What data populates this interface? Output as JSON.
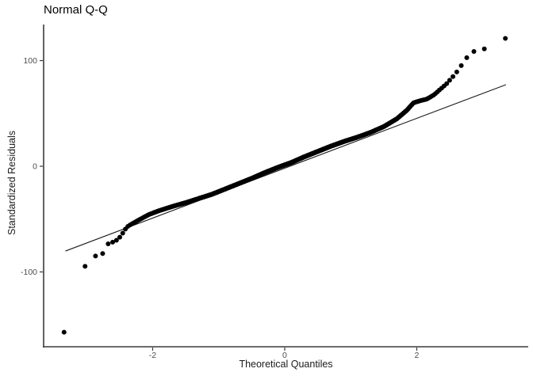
{
  "chart_data": {
    "type": "scatter",
    "subtype": "normal-qq-plot",
    "title": "Normal Q-Q",
    "xlabel": "Theoretical Quantiles",
    "ylabel": "Standardized Residuals",
    "x_tick_values": [
      -2,
      0,
      2
    ],
    "x_tick_labels": [
      "-2",
      "0",
      "2"
    ],
    "y_tick_values": [
      -100,
      0,
      100
    ],
    "y_tick_labels": [
      "-100",
      "0",
      "100"
    ],
    "xlim": [
      -3.651,
      3.688
    ],
    "ylim": [
      -170.8,
      134.1
    ],
    "grid": false,
    "legend": false,
    "n_points": 1200,
    "point_radius_px": 3,
    "qq_curve_points": [
      [
        -3.34,
        -157
      ],
      [
        -3.02,
        -94
      ],
      [
        -2.87,
        -85
      ],
      [
        -2.77,
        -84
      ],
      [
        -2.67,
        -73
      ],
      [
        -2.59,
        -71.5
      ],
      [
        -2.52,
        -69
      ],
      [
        -2.46,
        -64
      ],
      [
        -2.42,
        -60
      ],
      [
        -2.37,
        -56.5
      ],
      [
        -2.3,
        -54
      ],
      [
        -2.2,
        -50.5
      ],
      [
        -2.05,
        -45.5
      ],
      [
        -1.9,
        -42
      ],
      [
        -1.7,
        -38
      ],
      [
        -1.5,
        -34.5
      ],
      [
        -1.3,
        -30.5
      ],
      [
        -1.1,
        -26.5
      ],
      [
        -0.9,
        -21.5
      ],
      [
        -0.7,
        -16.5
      ],
      [
        -0.5,
        -11.5
      ],
      [
        -0.3,
        -6
      ],
      [
        -0.1,
        -1
      ],
      [
        0.1,
        3.5
      ],
      [
        0.3,
        9
      ],
      [
        0.5,
        14
      ],
      [
        0.7,
        19
      ],
      [
        0.9,
        23.5
      ],
      [
        1.1,
        27.5
      ],
      [
        1.3,
        32
      ],
      [
        1.5,
        37.5
      ],
      [
        1.7,
        45
      ],
      [
        1.85,
        53
      ],
      [
        1.95,
        60
      ],
      [
        2.05,
        62
      ],
      [
        2.15,
        63.5
      ],
      [
        2.26,
        67.5
      ],
      [
        2.35,
        72.5
      ],
      [
        2.45,
        78
      ],
      [
        2.52,
        83
      ],
      [
        2.58,
        87
      ],
      [
        2.66,
        94
      ],
      [
        2.76,
        103
      ],
      [
        2.89,
        110
      ],
      [
        3.02,
        111
      ],
      [
        3.34,
        121
      ]
    ],
    "reference_line": {
      "x1": -3.32,
      "y1": -80.2,
      "x2": 3.35,
      "y2": 77.2
    },
    "colors": {
      "point": "#000000",
      "reference_line": "#1a1a1a",
      "axis_line": "#3a3a3a",
      "tick_mark": "#3a3a3a",
      "tick_label": "#4d4d4d",
      "axis_title": "#1a1a1a",
      "title": "#000000",
      "background": "#ffffff"
    }
  }
}
